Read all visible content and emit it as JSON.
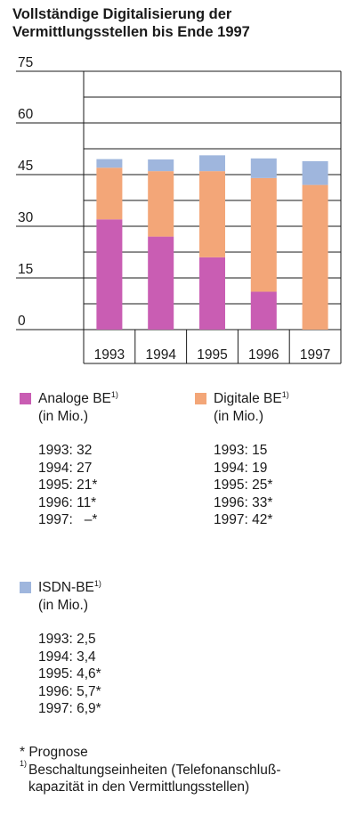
{
  "title_line1": "Vollständige Digitalisierung der",
  "title_line2": "Vermittlungsstellen bis Ende 1997",
  "colors": {
    "analog": "#c95db3",
    "digital": "#f3a678",
    "isdn": "#9fb6dd",
    "border": "#1a1a1a"
  },
  "chart_data": {
    "type": "bar",
    "stacked": true,
    "title": "Vollständige Digitalisierung der Vermittlungsstellen bis Ende 1997",
    "categories": [
      "1993",
      "1994",
      "1995",
      "1996",
      "1997"
    ],
    "series": [
      {
        "name": "Analoge BE",
        "key": "analog",
        "values": [
          32,
          27,
          21,
          11,
          0
        ]
      },
      {
        "name": "Digitale BE",
        "key": "digital",
        "values": [
          15,
          19,
          25,
          33,
          42
        ]
      },
      {
        "name": "ISDN-BE",
        "key": "isdn",
        "values": [
          2.5,
          3.4,
          4.6,
          5.7,
          6.9
        ]
      }
    ],
    "yticks": [
      "0",
      "15",
      "30",
      "45",
      "60",
      "75"
    ],
    "ylim": [
      0,
      75
    ],
    "grid": true
  },
  "legend": {
    "analog": {
      "label": "Analoge BE",
      "sup": "1)",
      "unit": "(in Mio.)",
      "values": [
        "1993: 32",
        "1994: 27",
        "1995: 21*",
        "1996: 11*",
        "1997:   –*"
      ]
    },
    "digital": {
      "label": "Digitale BE",
      "sup": "1)",
      "unit": "(in Mio.)",
      "values": [
        "1993: 15",
        "1994: 19",
        "1995: 25*",
        "1996: 33*",
        "1997: 42*"
      ]
    },
    "isdn": {
      "label": "ISDN-BE",
      "sup": "1)",
      "unit": "(in Mio.)",
      "values": [
        "1993: 2,5",
        "1994: 3,4",
        "1995: 4,6*",
        "1996: 5,7*",
        "1997: 6,9*"
      ]
    }
  },
  "footnotes": {
    "prognose": "* Prognose",
    "mark": "1)",
    "beschaltung": "Beschaltungseinheiten (Telefonanschluß-\nkapazität in den Vermittlungsstellen)"
  }
}
